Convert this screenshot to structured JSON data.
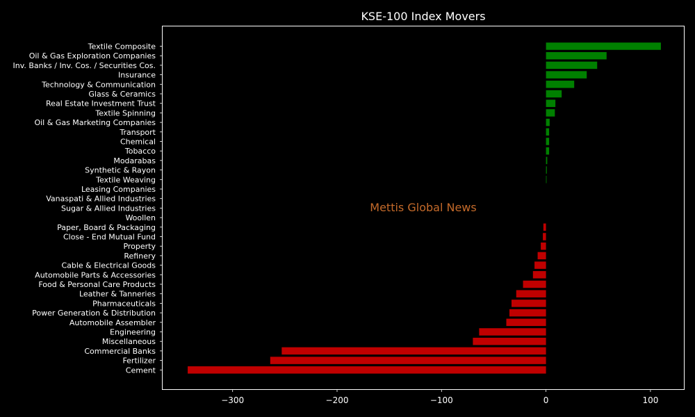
{
  "chart_data": {
    "type": "bar",
    "orientation": "horizontal",
    "title": "KSE-100 Index Movers",
    "xlabel": "",
    "ylabel": "",
    "watermark": "Mettis Global News",
    "xlim": [
      -367,
      132
    ],
    "xticks": [
      -300,
      -200,
      -100,
      0,
      100
    ],
    "xtick_labels": [
      "−300",
      "−200",
      "−100",
      "0",
      "100"
    ],
    "grid": false,
    "legend": "none",
    "colors": {
      "background": "#000000",
      "positive": "#008000",
      "negative": "#c00000",
      "text": "#ffffff",
      "watermark": "#c46a2a"
    },
    "categories": [
      "Textile Composite",
      "Oil & Gas Exploration Companies",
      "Inv. Banks / Inv. Cos. / Securities Cos.",
      "Insurance",
      "Technology & Communication",
      "Glass & Ceramics",
      "Real Estate Investment Trust",
      "Textile Spinning",
      "Oil & Gas Marketing Companies",
      "Transport",
      "Chemical",
      "Tobacco",
      "Modarabas",
      "Synthetic & Rayon",
      "Textile Weaving",
      "Leasing Companies",
      "Vanaspati & Allied Industries",
      "Sugar & Allied Industries",
      "Woollen",
      "Paper, Board & Packaging",
      "Close - End Mutual Fund",
      "Property",
      "Refinery",
      "Cable & Electrical Goods",
      "Automobile Parts & Accessories",
      "Food & Personal Care Products",
      "Leather & Tanneries",
      "Pharmaceuticals",
      "Power Generation & Distribution",
      "Automobile Assembler",
      "Engineering",
      "Miscellaneous",
      "Commercial Banks",
      "Fertilizer",
      "Cement"
    ],
    "values": [
      110,
      58,
      49,
      39,
      27,
      15,
      9,
      8.5,
      3.5,
      3,
      3,
      3,
      1.2,
      0.8,
      0.5,
      0,
      0,
      0,
      0,
      -2.5,
      -3,
      -5,
      -8,
      -11,
      -12.5,
      -22,
      -28.5,
      -33,
      -35,
      -38,
      -64,
      -70,
      -253,
      -264,
      -343
    ]
  }
}
